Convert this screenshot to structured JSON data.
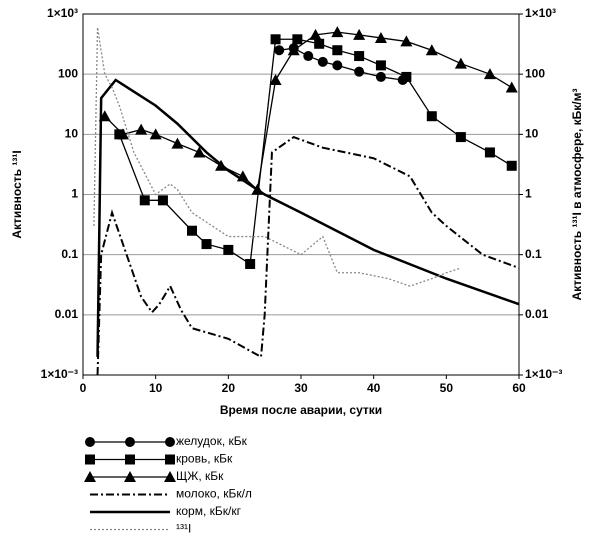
{
  "chart_data": {
    "type": "line",
    "ylabel": "Активность ¹³¹I",
    "y2label": "Активность ¹³¹I в атмосфере, кБк/м³",
    "xlabel": "Время после аварии, сутки",
    "xlim": [
      0,
      60
    ],
    "xticks": [
      0,
      10,
      20,
      30,
      40,
      50,
      60
    ],
    "ylim": [
      0.001,
      1000
    ],
    "log_y": true,
    "grid": true,
    "yticks": [
      {
        "value": 0.001,
        "label": "1×10⁻³"
      },
      0.01,
      0.1,
      1,
      10,
      100,
      {
        "value": 1000,
        "label": "1×10³"
      }
    ],
    "y2lim": [
      0.001,
      1000
    ],
    "y2ticks": [
      {
        "value": 0.001,
        "label": "1×10⁻³"
      },
      0.01,
      0.1,
      1,
      10,
      100,
      {
        "value": 1000,
        "label": "1×10³"
      }
    ],
    "series": [
      {
        "name": "желудок, кБк",
        "color": "#000000",
        "marker": "circle",
        "style": "solid",
        "x": [
          27,
          29,
          31,
          33,
          35,
          38,
          41,
          44
        ],
        "values": [
          250,
          270,
          200,
          160,
          140,
          110,
          90,
          80
        ]
      },
      {
        "name": "кровь, кБк",
        "color": "#000000",
        "marker": "square",
        "style": "solid",
        "x": [
          5,
          8.5,
          11,
          15,
          17,
          20,
          23,
          26.5,
          29.5,
          32.5,
          35,
          38,
          41,
          44.5,
          48,
          52,
          56,
          59
        ],
        "values": [
          10,
          0.8,
          0.8,
          0.25,
          0.15,
          0.12,
          0.07,
          380,
          380,
          320,
          250,
          200,
          140,
          90,
          20,
          9,
          5,
          3
        ]
      },
      {
        "name": "ЩЖ, кБк",
        "color": "#000000",
        "marker": "triangle",
        "style": "solid",
        "x": [
          3,
          5.5,
          8,
          10,
          13,
          16,
          19,
          22,
          24,
          26.5,
          29,
          32,
          35,
          38,
          41,
          44.5,
          48,
          52,
          56,
          59
        ],
        "values": [
          20,
          10,
          12,
          10,
          7,
          5,
          3,
          2,
          1.2,
          80,
          250,
          450,
          500,
          450,
          400,
          350,
          250,
          150,
          100,
          60
        ]
      },
      {
        "name": "молоко, кБк/л",
        "color": "#000000",
        "marker": "none",
        "style": "dashdot",
        "x": [
          2,
          2.5,
          4,
          6,
          8,
          9.5,
          10.5,
          12,
          13.5,
          15,
          20,
          24.5,
          25,
          26,
          29,
          33,
          40,
          45,
          48,
          50,
          55,
          60
        ],
        "values": [
          0.001,
          0.1,
          0.5,
          0.1,
          0.02,
          0.011,
          0.015,
          0.03,
          0.012,
          0.006,
          0.004,
          0.002,
          0.01,
          5,
          9,
          6,
          4,
          2,
          0.5,
          0.3,
          0.1,
          0.06
        ]
      },
      {
        "name": "корм, кБк/кг",
        "color": "#000000",
        "marker": "none",
        "style": "thick",
        "x": [
          2,
          2.5,
          4.5,
          10,
          13,
          17,
          20,
          25,
          30,
          40,
          50,
          60
        ],
        "values": [
          0.002,
          40,
          80,
          30,
          15,
          5,
          2.5,
          1,
          0.5,
          0.12,
          0.04,
          0.015
        ]
      },
      {
        "name": "¹³¹I",
        "color": "#888888",
        "marker": "none",
        "style": "dotted",
        "axis": "y2",
        "x": [
          1.5,
          2,
          3,
          4,
          5,
          7,
          10,
          12,
          13,
          15,
          20,
          25,
          30,
          33,
          35,
          38,
          42,
          45,
          48,
          50,
          52
        ],
        "values": [
          0.3,
          600,
          100,
          60,
          30,
          5,
          1,
          1.5,
          1.2,
          0.5,
          0.2,
          0.2,
          0.1,
          0.2,
          0.05,
          0.05,
          0.04,
          0.03,
          0.04,
          0.05,
          0.06
        ]
      }
    ]
  }
}
